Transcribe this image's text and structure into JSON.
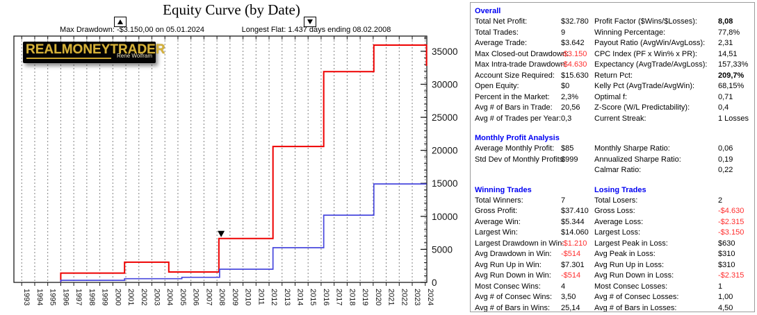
{
  "logo": {
    "brand": "REALMONEYTRADER",
    "author": "René Wolfram"
  },
  "chart_data": {
    "type": "line",
    "title": "Equity Curve (by Date)",
    "xlabel": "",
    "ylabel": "",
    "grid": "vertical-dashed",
    "legend_position": "none",
    "x_range": [
      1992.4,
      2024.12
    ],
    "y_range": [
      0,
      37300
    ],
    "y_minor_step": 1000,
    "x_ticks": [
      1993,
      1994,
      1995,
      1996,
      1997,
      1998,
      1999,
      2000,
      2001,
      2002,
      2003,
      2004,
      2005,
      2006,
      2007,
      2008,
      2009,
      2010,
      2011,
      2012,
      2013,
      2014,
      2015,
      2016,
      2017,
      2018,
      2019,
      2020,
      2021,
      2022,
      2023,
      2024
    ],
    "y_ticks": [
      0,
      5000,
      10000,
      15000,
      20000,
      25000,
      30000,
      35000
    ],
    "annotations": [
      {
        "icon": "triangle-up",
        "text": "Max Drawdown: -$3.150,00 on 05.01.2024"
      },
      {
        "icon": "triangle-down",
        "text": "Longest Flat: 1.437 days ending 08.02.2008"
      }
    ],
    "series": [
      {
        "name": "equity-red",
        "color": "#ee0000",
        "width": 2,
        "step_points": [
          [
            1996,
            0
          ],
          [
            1996,
            1410
          ],
          [
            2000.9,
            3055
          ],
          [
            2004.3,
            1575
          ],
          [
            2008.15,
            6640
          ],
          [
            2012.3,
            20580
          ],
          [
            2016.2,
            31920
          ],
          [
            2020.05,
            35930
          ],
          [
            2024.1,
            32780
          ]
        ]
      },
      {
        "name": "equity-blue",
        "color": "#4747dd",
        "width": 1.7,
        "step_points": [
          [
            1996,
            0
          ],
          [
            1996,
            310
          ],
          [
            2000.9,
            560
          ],
          [
            2005.3,
            770
          ],
          [
            2008.2,
            1995
          ],
          [
            2012.3,
            5250
          ],
          [
            2016.2,
            10185
          ],
          [
            2020.05,
            14910
          ],
          [
            2024.1,
            14910
          ]
        ]
      }
    ],
    "point_markers": [
      {
        "shape": "triangle-down",
        "x": 2008.32,
        "y": 6640
      }
    ]
  },
  "stats": {
    "sections": [
      {
        "heading_left": "Overall",
        "heading_right": "",
        "rows": [
          [
            "Total Net Profit:",
            "$32.780",
            "",
            "Profit Factor ($Wins/$Losses):",
            "8,08",
            "b"
          ],
          [
            "Total Trades:",
            "9",
            "",
            "Winning Percentage:",
            "77,8%",
            ""
          ],
          [
            "Average Trade:",
            "$3.642",
            "",
            "Payout Ratio (AvgWin/AvgLoss):",
            "2,31",
            ""
          ],
          [
            "Max Closed-out Drawdown:",
            "-$3.150",
            "r",
            "CPC Index (PF x Win% x PR):",
            "14,51",
            ""
          ],
          [
            "Max Intra-trade Drawdown:",
            "-$4.630",
            "r",
            "Expectancy (AvgTrade/AvgLoss):",
            "157,33%",
            ""
          ],
          [
            "Account Size Required:",
            "$15.630",
            "",
            "Return Pct:",
            "209,7%",
            "b"
          ],
          [
            "Open Equity:",
            "$0",
            "",
            "Kelly Pct (AvgTrade/AvgWin):",
            "68,15%",
            ""
          ],
          [
            "Percent in the Market:",
            "2,3%",
            "",
            "Optimal f:",
            "0,71",
            ""
          ],
          [
            "Avg # of Bars in Trade:",
            "20,56",
            "",
            "Z-Score (W/L Predictability):",
            "0,4",
            ""
          ],
          [
            "Avg # of Trades per Year:",
            "0,3",
            "",
            "Current Streak:",
            "1 Losses",
            ""
          ]
        ]
      },
      {
        "heading_left": "Monthly Profit Analysis",
        "heading_right": "",
        "rows": [
          [
            "Average Monthly Profit:",
            "$85",
            "",
            "Monthly Sharpe Ratio:",
            "0,06",
            ""
          ],
          [
            "Std Dev of Monthly Profits:",
            "$999",
            "",
            "Annualized Sharpe Ratio:",
            "0,19",
            ""
          ],
          [
            "",
            "",
            "",
            "Calmar Ratio:",
            "0,22",
            ""
          ]
        ]
      },
      {
        "heading_left": "Winning Trades",
        "heading_right": "Losing Trades",
        "rows": [
          [
            "Total Winners:",
            "7",
            "",
            "Total Losers:",
            "2",
            ""
          ],
          [
            "Gross Profit:",
            "$37.410",
            "",
            "Gross Loss:",
            "-$4.630",
            "r"
          ],
          [
            "Average Win:",
            "$5.344",
            "",
            "Average Loss:",
            "-$2.315",
            "r"
          ],
          [
            "Largest Win:",
            "$14.060",
            "",
            "Largest Loss:",
            "-$3.150",
            "r"
          ],
          [
            "Largest Drawdown in Win:",
            "-$1.210",
            "r",
            "Largest Peak in Loss:",
            "$630",
            ""
          ],
          [
            "Avg Drawdown in Win:",
            "-$514",
            "r",
            "Avg Peak in Loss:",
            "$310",
            ""
          ],
          [
            "Avg Run Up in Win:",
            "$7.301",
            "",
            "Avg Run Up in Loss:",
            "$310",
            ""
          ],
          [
            "Avg Run Down in Win:",
            "-$514",
            "r",
            "Avg Run Down in Loss:",
            "-$2.315",
            "r"
          ],
          [
            "Most Consec Wins:",
            "4",
            "",
            "Most Consec Losses:",
            "1",
            ""
          ],
          [
            "Avg # of Consec Wins:",
            "3,50",
            "",
            "Avg # of Consec Losses:",
            "1,00",
            ""
          ],
          [
            "Avg # of Bars in Wins:",
            "25,14",
            "",
            "Avg # of Bars in Losses:",
            "4,50",
            ""
          ]
        ]
      }
    ]
  }
}
